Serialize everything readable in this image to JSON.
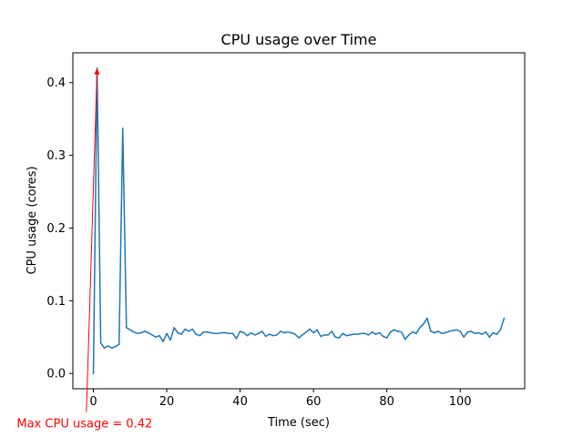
{
  "chart_data": {
    "type": "line",
    "title": "CPU usage over Time",
    "xlabel": "Time (sec)",
    "ylabel": "CPU usage (cores)",
    "xlim": [
      -5.6,
      117.6
    ],
    "ylim": [
      -0.021,
      0.441
    ],
    "xticks": [
      0,
      20,
      40,
      60,
      80,
      100
    ],
    "yticks": [
      0.0,
      0.1,
      0.2,
      0.3,
      0.4
    ],
    "ytick_labels": [
      "0.0",
      "0.1",
      "0.2",
      "0.3",
      "0.4"
    ],
    "grid": false,
    "series": [
      {
        "color": "#1f77b4",
        "x": [
          0,
          1,
          2,
          3,
          4,
          5,
          6,
          7,
          8,
          9,
          10,
          11,
          12,
          13,
          14,
          15,
          16,
          17,
          18,
          19,
          20,
          21,
          22,
          23,
          24,
          25,
          26,
          27,
          28,
          29,
          30,
          31,
          32,
          33,
          34,
          35,
          36,
          37,
          38,
          39,
          40,
          41,
          42,
          43,
          44,
          45,
          46,
          47,
          48,
          49,
          50,
          51,
          52,
          53,
          54,
          55,
          56,
          57,
          58,
          59,
          60,
          61,
          62,
          63,
          64,
          65,
          66,
          67,
          68,
          69,
          70,
          71,
          72,
          73,
          74,
          75,
          76,
          77,
          78,
          79,
          80,
          81,
          82,
          83,
          84,
          85,
          86,
          87,
          88,
          89,
          90,
          91,
          92,
          93,
          94,
          95,
          96,
          97,
          98,
          99,
          100,
          101,
          102,
          103,
          104,
          105,
          106,
          107,
          108,
          109,
          110,
          111,
          112
        ],
        "y": [
          0.0,
          0.42,
          0.042,
          0.035,
          0.038,
          0.035,
          0.037,
          0.04,
          0.337,
          0.063,
          0.06,
          0.057,
          0.055,
          0.056,
          0.058,
          0.056,
          0.053,
          0.05,
          0.052,
          0.044,
          0.055,
          0.046,
          0.063,
          0.056,
          0.054,
          0.061,
          0.058,
          0.061,
          0.054,
          0.052,
          0.057,
          0.057,
          0.056,
          0.055,
          0.055,
          0.056,
          0.056,
          0.055,
          0.055,
          0.048,
          0.058,
          0.056,
          0.052,
          0.056,
          0.053,
          0.055,
          0.058,
          0.051,
          0.054,
          0.052,
          0.053,
          0.058,
          0.056,
          0.057,
          0.056,
          0.054,
          0.049,
          0.053,
          0.057,
          0.061,
          0.056,
          0.06,
          0.051,
          0.053,
          0.053,
          0.058,
          0.05,
          0.049,
          0.055,
          0.052,
          0.053,
          0.054,
          0.054,
          0.055,
          0.055,
          0.053,
          0.057,
          0.054,
          0.056,
          0.051,
          0.049,
          0.057,
          0.06,
          0.058,
          0.057,
          0.047,
          0.053,
          0.057,
          0.055,
          0.063,
          0.068,
          0.076,
          0.058,
          0.056,
          0.058,
          0.055,
          0.056,
          0.058,
          0.059,
          0.06,
          0.058,
          0.05,
          0.057,
          0.058,
          0.055,
          0.056,
          0.054,
          0.057,
          0.05,
          0.056,
          0.054,
          0.06,
          0.076
        ]
      }
    ],
    "annotation": {
      "text": "Max CPU usage = 0.42",
      "color": "#ff0000",
      "point": [
        1,
        0.42
      ],
      "text_at": [
        -2.4,
        -0.074
      ]
    }
  }
}
